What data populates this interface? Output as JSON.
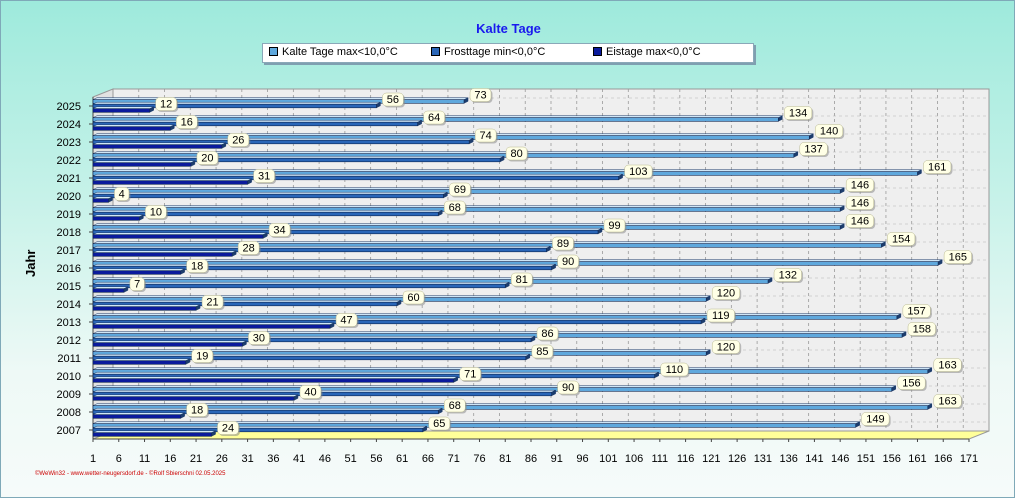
{
  "title": "Kalte Tage",
  "ylabel": "Jahr",
  "footer": "©WeWin32 - www.wetter-neugersdorf.de - ©Rolf Sbierschni  02.05.2025",
  "legend": {
    "kalte": "Kalte Tage max<10,0°C",
    "frost": "Frosttage min<0,0°C",
    "eis": "Eistage max<0,0°C"
  },
  "colors": {
    "kalte": "#5fa8dd",
    "frost": "#2a66b8",
    "eis": "#0a1a9c",
    "floor": "#ffff99",
    "background": "#9eeadc"
  },
  "chart_data": {
    "type": "bar",
    "orientation": "horizontal",
    "categories": [
      "2025",
      "2024",
      "2023",
      "2022",
      "2021",
      "2020",
      "2019",
      "2018",
      "2017",
      "2016",
      "2015",
      "2014",
      "2013",
      "2012",
      "2011",
      "2010",
      "2009",
      "2008",
      "2007"
    ],
    "series": [
      {
        "name": "Kalte Tage max<10,0°C",
        "values": [
          73,
          134,
          140,
          137,
          161,
          146,
          146,
          146,
          154,
          165,
          132,
          120,
          157,
          158,
          120,
          163,
          156,
          163,
          149
        ]
      },
      {
        "name": "Frosttage min<0,0°C",
        "values": [
          56,
          64,
          74,
          80,
          103,
          69,
          68,
          99,
          89,
          90,
          81,
          60,
          119,
          86,
          85,
          110,
          90,
          68,
          65
        ]
      },
      {
        "name": "Eistage max<0,0°C",
        "values": [
          12,
          16,
          26,
          20,
          31,
          4,
          10,
          34,
          28,
          18,
          7,
          21,
          47,
          30,
          19,
          71,
          40,
          18,
          24
        ]
      }
    ],
    "xticks": [
      1,
      6,
      11,
      16,
      21,
      26,
      31,
      36,
      41,
      46,
      51,
      56,
      61,
      66,
      71,
      76,
      81,
      86,
      91,
      96,
      101,
      106,
      111,
      116,
      121,
      126,
      131,
      136,
      141,
      146,
      151,
      156,
      161,
      166,
      171
    ],
    "xlim": [
      1,
      171
    ],
    "ylabel": "Jahr",
    "grid": true,
    "legend_position": "top"
  }
}
